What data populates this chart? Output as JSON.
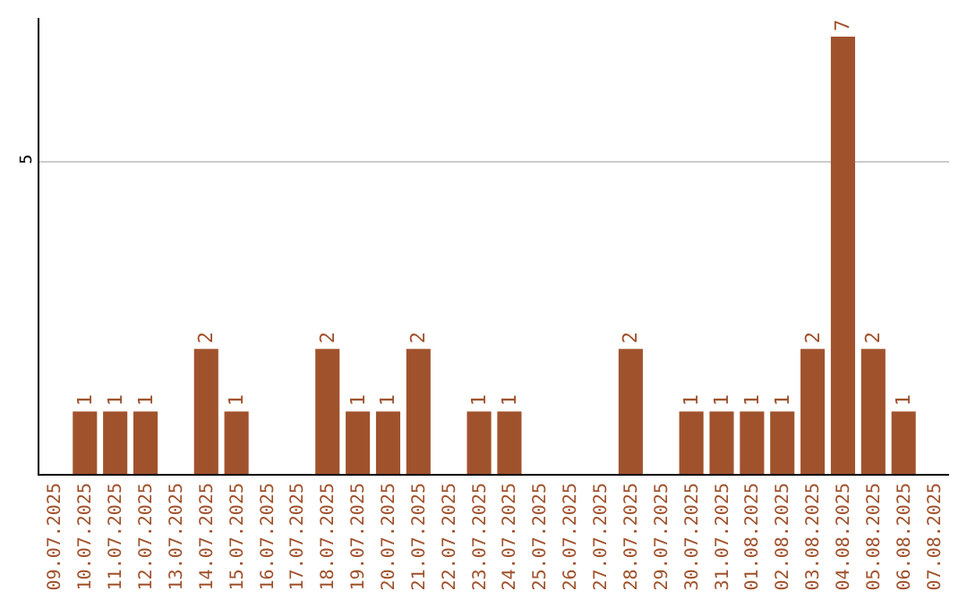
{
  "chart_data": {
    "type": "bar",
    "categories": [
      "09.07.2025",
      "10.07.2025",
      "11.07.2025",
      "12.07.2025",
      "13.07.2025",
      "14.07.2025",
      "15.07.2025",
      "16.07.2025",
      "17.07.2025",
      "18.07.2025",
      "19.07.2025",
      "20.07.2025",
      "21.07.2025",
      "22.07.2025",
      "23.07.2025",
      "24.07.2025",
      "25.07.2025",
      "26.07.2025",
      "27.07.2025",
      "28.07.2025",
      "29.07.2025",
      "30.07.2025",
      "31.07.2025",
      "01.08.2025",
      "02.08.2025",
      "03.08.2025",
      "04.08.2025",
      "05.08.2025",
      "06.08.2025",
      "07.08.2025"
    ],
    "values": [
      0,
      1,
      1,
      1,
      0,
      2,
      1,
      0,
      0,
      2,
      1,
      1,
      2,
      0,
      1,
      1,
      0,
      0,
      0,
      2,
      0,
      1,
      1,
      1,
      1,
      2,
      7,
      2,
      1,
      0
    ],
    "value_labels": [
      null,
      "1",
      "1",
      "1",
      null,
      "2",
      "1",
      null,
      null,
      "2",
      "1",
      "1",
      "2",
      null,
      "1",
      "1",
      null,
      null,
      null,
      "2",
      null,
      "1",
      "1",
      "1",
      "1",
      "2",
      "7",
      "2",
      "1",
      null
    ],
    "color": "#a0522d",
    "ylim": [
      0,
      7.3
    ],
    "yticks": [
      5
    ],
    "grid": "y"
  }
}
